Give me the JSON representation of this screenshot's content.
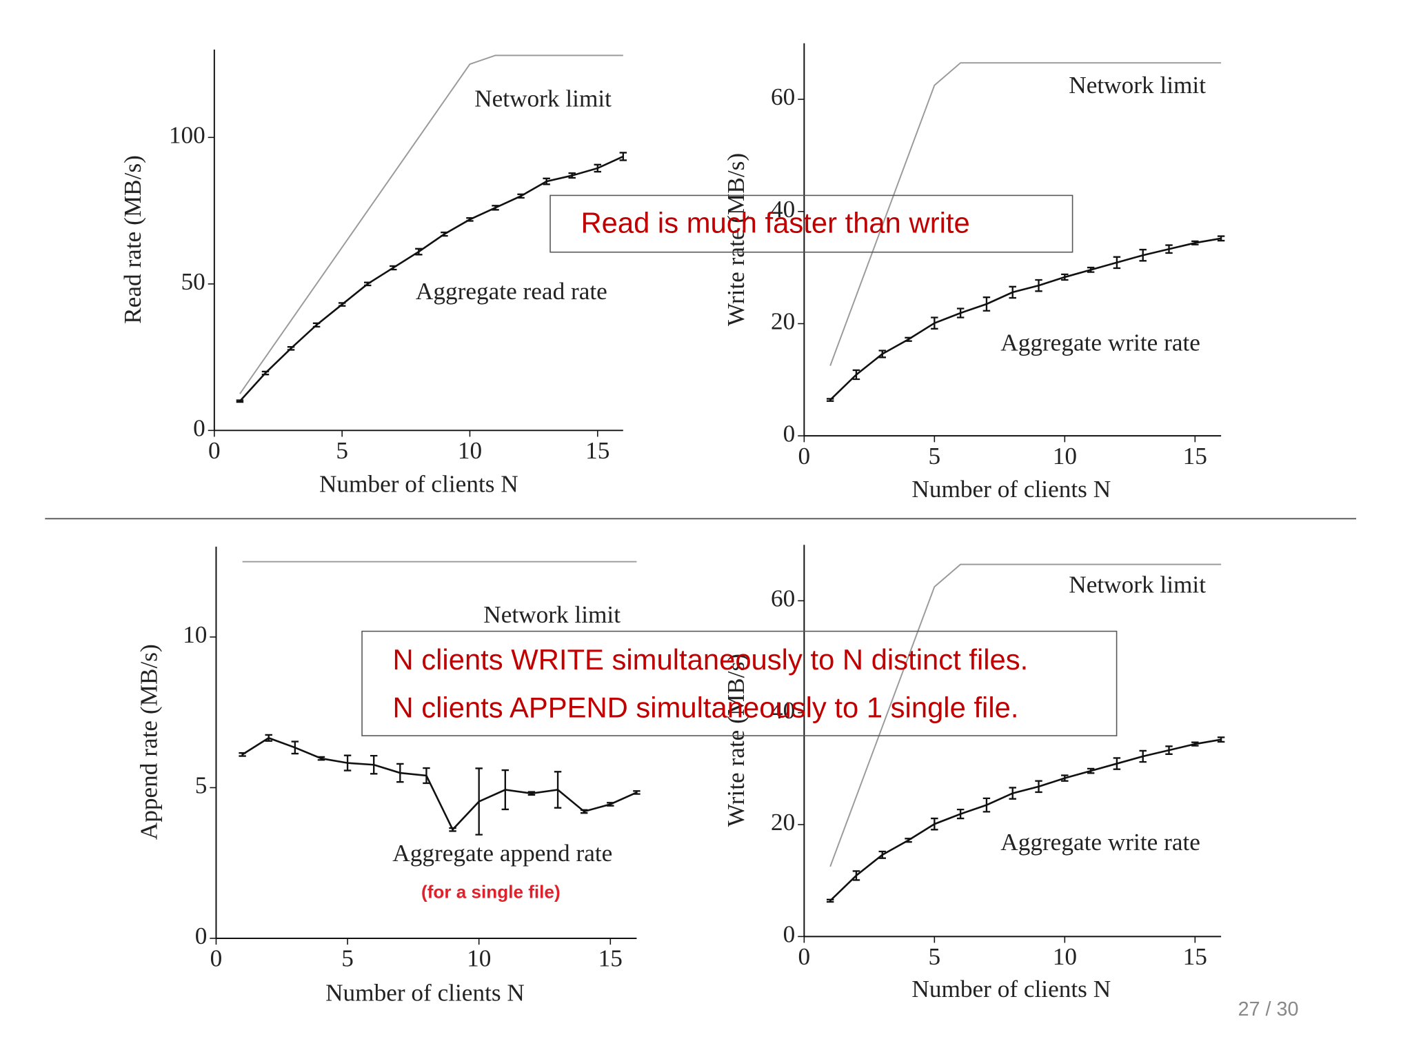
{
  "chart_data": [
    {
      "type": "line",
      "x_label": "Number of clients N",
      "y_label": "Read rate (MB/s)",
      "xlim": [
        0,
        16
      ],
      "xticks": [
        0,
        5,
        10,
        15
      ],
      "ylim": [
        0,
        130
      ],
      "yticks": [
        0,
        50,
        100
      ],
      "series": [
        {
          "name": "Network limit",
          "color": "#9a9a9a",
          "x": [
            1,
            10,
            11,
            16
          ],
          "values": [
            12.5,
            125,
            128,
            128
          ]
        },
        {
          "name": "Aggregate read rate",
          "color": "#111111",
          "x": [
            1,
            2,
            3,
            4,
            5,
            6,
            7,
            8,
            9,
            10,
            11,
            12,
            13,
            14,
            15,
            16
          ],
          "values": [
            10,
            19.6,
            28,
            36,
            43,
            50,
            55.5,
            61,
            67,
            72,
            76,
            80,
            85,
            87,
            89.5,
            93.5
          ],
          "errors": [
            0.3,
            0.5,
            0.5,
            0.6,
            0.5,
            0.5,
            0.6,
            1,
            0.6,
            0.5,
            0.7,
            0.6,
            1,
            0.8,
            1.2,
            1.3
          ]
        }
      ]
    },
    {
      "type": "line",
      "x_label": "Number of clients N",
      "y_label": "Write rate (MB/s)",
      "xlim": [
        0,
        16
      ],
      "xticks": [
        0,
        5,
        10,
        15
      ],
      "ylim": [
        0,
        70
      ],
      "yticks": [
        0,
        20,
        40,
        60
      ],
      "series": [
        {
          "name": "Network limit",
          "color": "#9a9a9a",
          "x": [
            1,
            5,
            6,
            16
          ],
          "values": [
            12.5,
            62.5,
            66.5,
            66.5
          ]
        },
        {
          "name": "Aggregate write rate",
          "color": "#111111",
          "x": [
            1,
            2,
            3,
            4,
            5,
            6,
            7,
            8,
            9,
            10,
            11,
            12,
            13,
            14,
            15,
            16
          ],
          "values": [
            6.4,
            10.9,
            14.6,
            17.2,
            20.1,
            21.9,
            23.5,
            25.6,
            26.8,
            28.3,
            29.6,
            30.9,
            32.2,
            33.3,
            34.4,
            35.2
          ],
          "errors": [
            0.2,
            0.8,
            0.6,
            0.3,
            1,
            0.8,
            1.2,
            1,
            1,
            0.5,
            0.4,
            1,
            1,
            0.7,
            0.3,
            0.4
          ]
        }
      ]
    },
    {
      "type": "line",
      "x_label": "Number of clients N",
      "y_label": "Append rate (MB/s)",
      "note": "(for a single file)",
      "xlim": [
        0,
        16
      ],
      "xticks": [
        0,
        5,
        10,
        15
      ],
      "ylim": [
        0,
        13
      ],
      "yticks": [
        0,
        5,
        10
      ],
      "series": [
        {
          "name": "Network limit",
          "color": "#9a9a9a",
          "x": [
            1,
            16
          ],
          "values": [
            12.5,
            12.5
          ]
        },
        {
          "name": "Aggregate append rate",
          "color": "#111111",
          "x": [
            1,
            2,
            3,
            4,
            5,
            6,
            7,
            8,
            9,
            10,
            11,
            12,
            13,
            14,
            15,
            16
          ],
          "values": [
            6.1,
            6.65,
            6.33,
            5.97,
            5.82,
            5.76,
            5.49,
            5.4,
            3.61,
            4.54,
            4.93,
            4.81,
            4.93,
            4.21,
            4.45,
            4.84
          ],
          "errors": [
            0.05,
            0.1,
            0.2,
            0.05,
            0.25,
            0.3,
            0.3,
            0.25,
            0.05,
            1.1,
            0.65,
            0.05,
            0.6,
            0.05,
            0.05,
            0.05
          ]
        }
      ]
    },
    {
      "type": "line",
      "x_label": "Number of clients N",
      "y_label": "Write rate (MB/s)",
      "xlim": [
        0,
        16
      ],
      "xticks": [
        0,
        5,
        10,
        15
      ],
      "ylim": [
        0,
        70
      ],
      "yticks": [
        0,
        20,
        40,
        60
      ],
      "series": [
        {
          "name": "Network limit",
          "color": "#9a9a9a",
          "x": [
            1,
            5,
            6,
            16
          ],
          "values": [
            12.5,
            62.5,
            66.5,
            66.5
          ]
        },
        {
          "name": "Aggregate write rate",
          "color": "#111111",
          "x": [
            1,
            2,
            3,
            4,
            5,
            6,
            7,
            8,
            9,
            10,
            11,
            12,
            13,
            14,
            15,
            16
          ],
          "values": [
            6.4,
            10.9,
            14.6,
            17.2,
            20.1,
            21.9,
            23.5,
            25.6,
            26.8,
            28.3,
            29.6,
            30.9,
            32.2,
            33.3,
            34.4,
            35.2
          ],
          "errors": [
            0.2,
            0.8,
            0.6,
            0.3,
            1,
            0.8,
            1.2,
            1,
            1,
            0.5,
            0.4,
            1,
            1,
            0.7,
            0.3,
            0.4
          ]
        }
      ]
    }
  ],
  "slide": {
    "callouts": [
      [
        "Read is much faster than write"
      ],
      [
        "N clients WRITE simultaneously to N distinct files.",
        "N clients APPEND simultaneously to 1 single file."
      ]
    ],
    "page_number": "27 / 30"
  }
}
